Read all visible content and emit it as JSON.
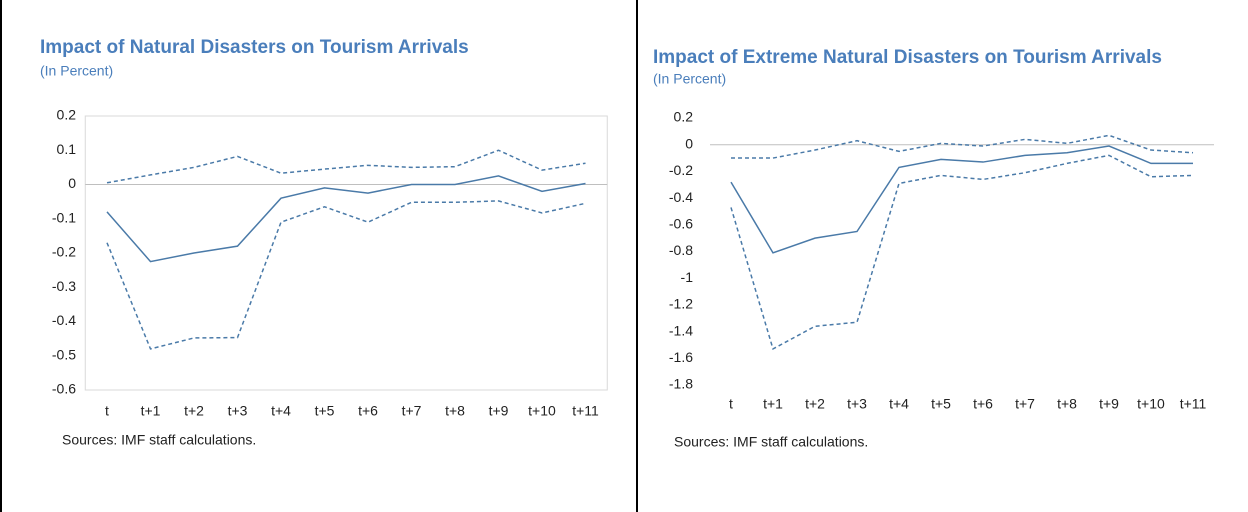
{
  "chart_data": [
    {
      "type": "line",
      "title": "Impact of Natural Disasters on Tourism Arrivals",
      "subtitle": "(In Percent)",
      "categories": [
        "t",
        "t+1",
        "t+2",
        "t+3",
        "t+4",
        "t+5",
        "t+6",
        "t+7",
        "t+8",
        "t+9",
        "t+10",
        "t+11"
      ],
      "series": [
        {
          "color": "#4a7aa8",
          "style": "solid",
          "values": [
            -0.08,
            -0.225,
            -0.2,
            -0.18,
            -0.04,
            -0.01,
            -0.025,
            0,
            0,
            0.025,
            -0.02,
            0.003
          ]
        },
        {
          "color": "#4a7aa8",
          "style": "dashed",
          "values": [
            0.005,
            0.028,
            0.05,
            0.082,
            0.033,
            0.045,
            0.056,
            0.05,
            0.052,
            0.1,
            0.042,
            0.062
          ]
        },
        {
          "color": "#4a7aa8",
          "style": "dashed",
          "values": [
            -0.17,
            -0.48,
            -0.448,
            -0.447,
            -0.11,
            -0.065,
            -0.11,
            -0.052,
            -0.052,
            -0.048,
            -0.083,
            -0.055
          ]
        }
      ],
      "ylim": [
        -0.6,
        0.2
      ],
      "yticks": [
        0.2,
        0.1,
        0,
        -0.1,
        -0.2,
        -0.3,
        -0.4,
        -0.5,
        -0.6
      ],
      "frame": true,
      "note": "Sources: IMF staff calculations."
    },
    {
      "type": "line",
      "title": "Impact of Extreme Natural Disasters on Tourism Arrivals",
      "subtitle": "(In Percent)",
      "categories": [
        "t",
        "t+1",
        "t+2",
        "t+3",
        "t+4",
        "t+5",
        "t+6",
        "t+7",
        "t+8",
        "t+9",
        "t+10",
        "t+11"
      ],
      "series": [
        {
          "color": "#4a7aa8",
          "style": "solid",
          "values": [
            -0.28,
            -0.81,
            -0.7,
            -0.65,
            -0.17,
            -0.11,
            -0.13,
            -0.08,
            -0.06,
            -0.01,
            -0.14,
            -0.14
          ]
        },
        {
          "color": "#4a7aa8",
          "style": "dashed",
          "values": [
            -0.1,
            -0.1,
            -0.04,
            0.03,
            -0.05,
            0.01,
            -0.01,
            0.04,
            0.01,
            0.07,
            -0.04,
            -0.06
          ]
        },
        {
          "color": "#4a7aa8",
          "style": "dashed",
          "values": [
            -0.47,
            -1.53,
            -1.36,
            -1.33,
            -0.29,
            -0.23,
            -0.26,
            -0.21,
            -0.14,
            -0.08,
            -0.24,
            -0.23
          ]
        }
      ],
      "ylim": [
        -1.8,
        0.2
      ],
      "yticks": [
        0.2,
        0,
        -0.2,
        -0.4,
        -0.6,
        -0.8,
        -1,
        -1.2,
        -1.4,
        -1.6,
        -1.8
      ],
      "frame": false,
      "note": "Sources: IMF staff calculations."
    }
  ]
}
